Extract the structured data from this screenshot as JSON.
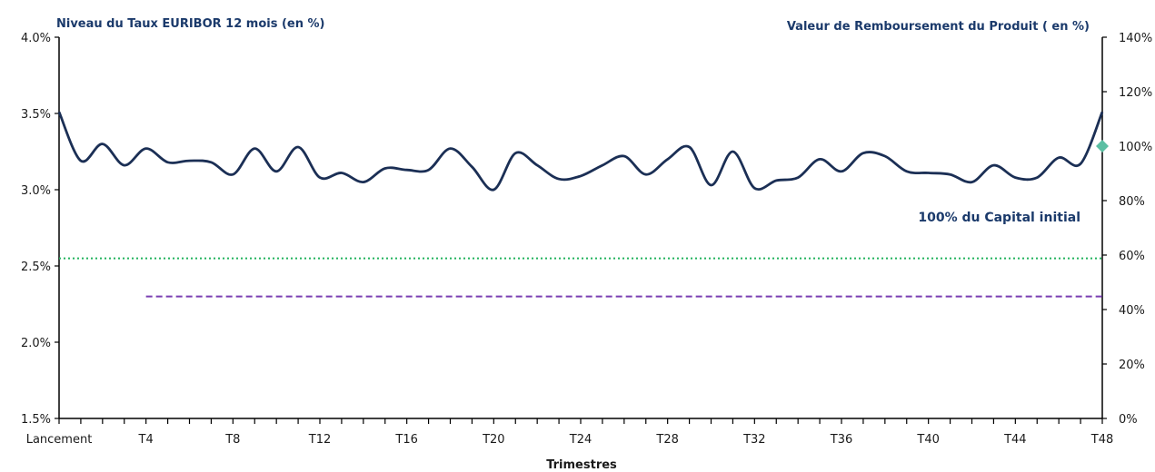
{
  "chart_data": {
    "type": "line",
    "left_axis_title": "Niveau du Taux EURIBOR 12 mois (en %)",
    "right_axis_title": "Valeur de Remboursement du Produit ( en %)",
    "xlabel": "Trimestres",
    "x_tick_labels": [
      "Lancement",
      "T4",
      "T8",
      "T12",
      "T16",
      "T20",
      "T24",
      "T28",
      "T32",
      "T36",
      "T40",
      "T44",
      "T48"
    ],
    "x_tick_positions": [
      0,
      4,
      8,
      12,
      16,
      20,
      24,
      28,
      32,
      36,
      40,
      44,
      48
    ],
    "x_range": [
      0,
      48
    ],
    "left_ylim": [
      1.5,
      4.0
    ],
    "left_y_ticks": [
      "1.5%",
      "2.0%",
      "2.5%",
      "3.0%",
      "3.5%",
      "4.0%"
    ],
    "left_y_tick_values": [
      1.5,
      2.0,
      2.5,
      3.0,
      3.5,
      4.0
    ],
    "right_ylim": [
      0,
      140
    ],
    "right_y_ticks": [
      "0%",
      "20%",
      "40%",
      "60%",
      "80%",
      "100%",
      "120%",
      "140%"
    ],
    "right_y_tick_values": [
      0,
      20,
      40,
      60,
      80,
      100,
      120,
      140
    ],
    "series": [
      {
        "axis": "left",
        "color": "#1b2f55",
        "x": [
          0,
          1,
          2,
          3,
          4,
          5,
          6,
          7,
          8,
          9,
          10,
          11,
          12,
          13,
          14,
          15,
          16,
          17,
          18,
          19,
          20,
          21,
          22,
          23,
          24,
          25,
          26,
          27,
          28,
          29,
          30,
          31,
          32,
          33,
          34,
          35,
          36,
          37,
          38,
          39,
          40,
          41,
          42,
          43,
          44,
          45,
          46,
          47,
          48
        ],
        "values": [
          3.51,
          3.19,
          3.3,
          3.16,
          3.27,
          3.18,
          3.19,
          3.18,
          3.1,
          3.27,
          3.12,
          3.28,
          3.08,
          3.11,
          3.05,
          3.14,
          3.13,
          3.13,
          3.27,
          3.15,
          3.0,
          3.24,
          3.16,
          3.07,
          3.09,
          3.16,
          3.22,
          3.1,
          3.2,
          3.28,
          3.03,
          3.25,
          3.01,
          3.06,
          3.08,
          3.2,
          3.12,
          3.24,
          3.22,
          3.12,
          3.11,
          3.1,
          3.05,
          3.16,
          3.08,
          3.08,
          3.21,
          3.17,
          3.51
        ]
      }
    ],
    "reference_lines": [
      {
        "axis": "left",
        "value": 2.55,
        "x_start": 0,
        "x_end": 48,
        "style": "dotted",
        "color": "#22b35e"
      },
      {
        "axis": "left",
        "value": 2.3,
        "x_start": 4,
        "x_end": 48,
        "style": "dashed",
        "color": "#7a3fb2"
      }
    ],
    "marker": {
      "axis": "right",
      "x": 48,
      "value": 100,
      "shape": "diamond",
      "color": "#5bbfa3"
    },
    "annotation": {
      "text": "100% du Capital initial",
      "color": "#1b3a6b"
    },
    "title_color": "#1b3a6b"
  }
}
